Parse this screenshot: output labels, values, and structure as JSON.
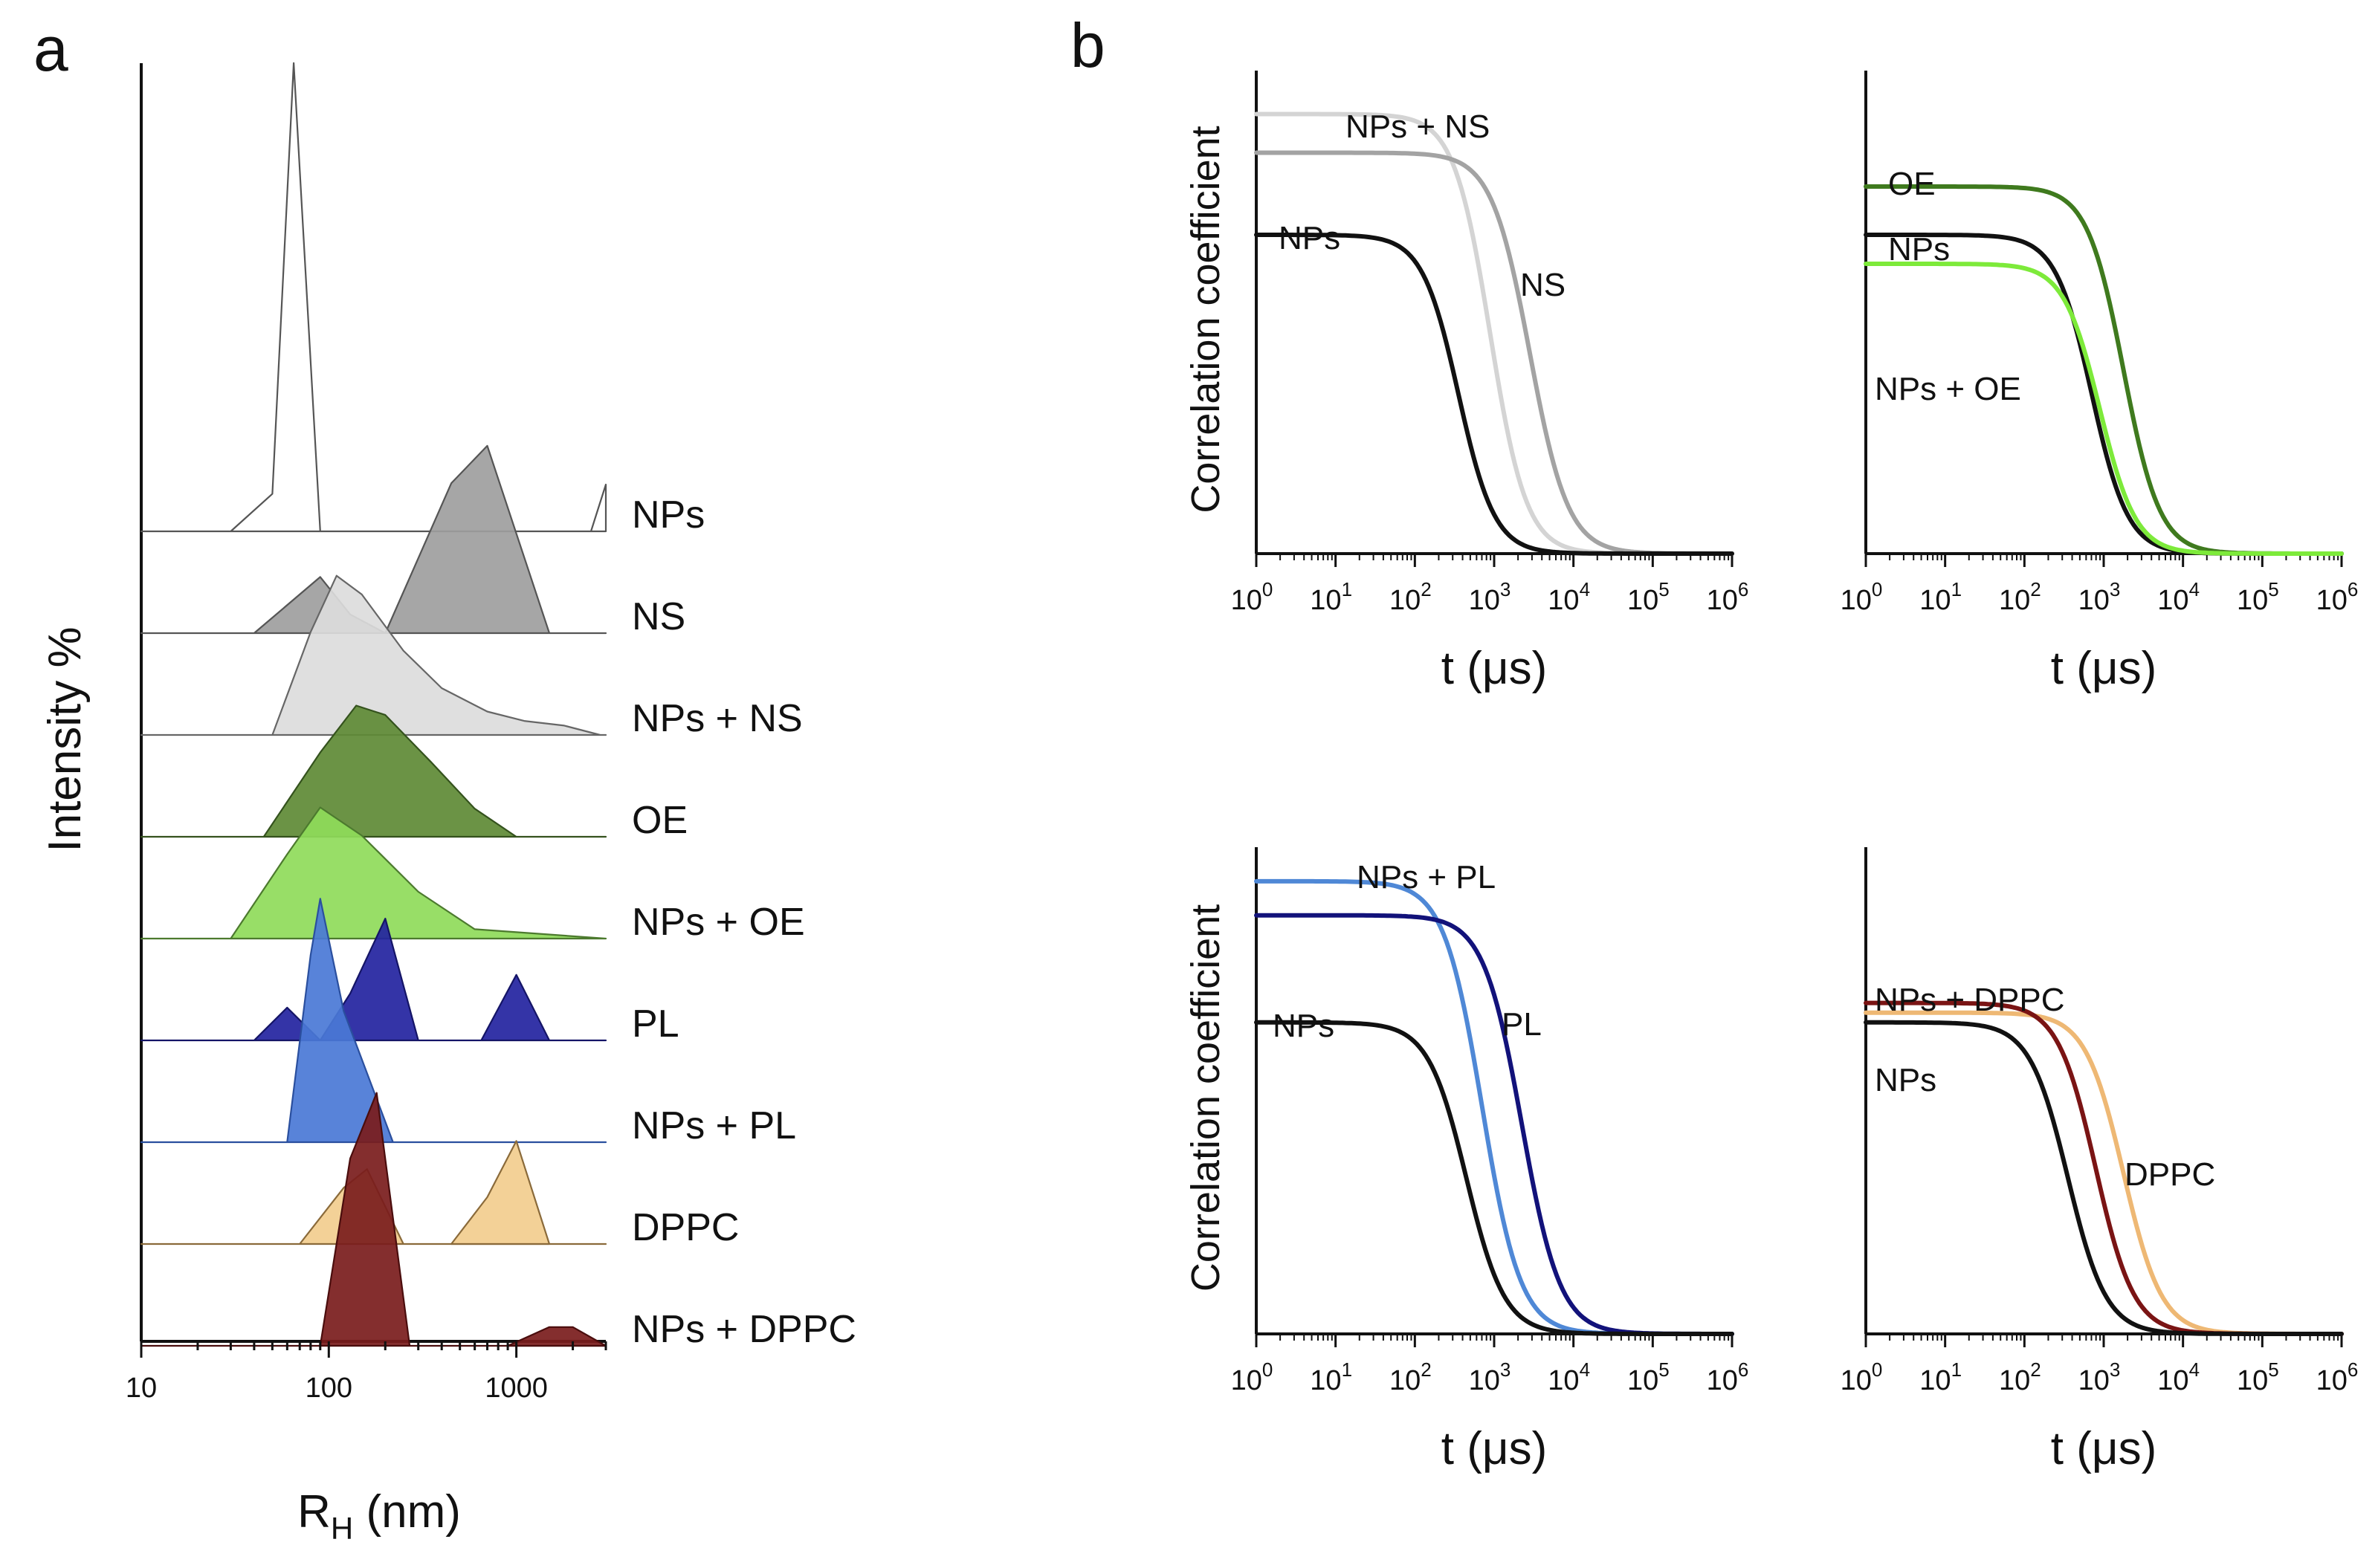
{
  "panel_a_letter": "a",
  "panel_b_letter": "b",
  "chart_data": [
    {
      "type": "area",
      "panel": "a",
      "ylabel": "Intensity %",
      "xlabel": {
        "main": "R",
        "sub": "H",
        "unit": " (nm)"
      },
      "xscale": "log",
      "xlim": [
        10,
        3000
      ],
      "x_ticks": [
        10,
        100,
        1000
      ],
      "x_tick_labels": [
        "10",
        "100",
        "1000"
      ],
      "peak_scale": 0.18,
      "legend": "row labels at right",
      "rows": [
        {
          "label": "NPs",
          "color": "#ffffff",
          "edge": "#555555",
          "traces": [
            {
              "x": [
                10,
                30,
                50,
                65,
                90,
                2500,
                3000
              ],
              "y": [
                0,
                0,
                8,
                100,
                0,
                0,
                10
              ]
            }
          ]
        },
        {
          "label": "NS",
          "color": "#9e9e9e",
          "edge": "#555555",
          "traces": [
            {
              "x": [
                10,
                40,
                90,
                130,
                200,
                450,
                700,
                1500,
                3000
              ],
              "y": [
                0,
                0,
                12,
                4,
                0,
                32,
                40,
                0,
                0
              ]
            }
          ]
        },
        {
          "label": "NPs + NS",
          "color": "#dcdcdc",
          "edge": "#666666",
          "traces": [
            {
              "x": [
                10,
                50,
                80,
                110,
                150,
                250,
                400,
                700,
                1100,
                1800,
                2800,
                3000
              ],
              "y": [
                0,
                0,
                22,
                34,
                30,
                18,
                10,
                5,
                3,
                2,
                0,
                0
              ]
            }
          ]
        },
        {
          "label": "OE",
          "color": "#5e8a35",
          "edge": "#34521d",
          "traces": [
            {
              "x": [
                10,
                45,
                90,
                140,
                200,
                350,
                600,
                1000,
                3000
              ],
              "y": [
                0,
                0,
                18,
                28,
                26,
                16,
                6,
                0,
                0
              ]
            }
          ]
        },
        {
          "label": "NPs + OE",
          "color": "#8fdb5a",
          "edge": "#4c7a2e",
          "traces": [
            {
              "x": [
                10,
                30,
                60,
                90,
                150,
                300,
                600,
                3000
              ],
              "y": [
                0,
                0,
                18,
                28,
                22,
                10,
                2,
                0
              ]
            }
          ]
        },
        {
          "label": "PL",
          "color": "#2323a0",
          "edge": "#141466",
          "traces": [
            {
              "x": [
                10,
                40,
                60,
                90,
                130,
                200,
                300,
                650,
                1000,
                1500,
                3000
              ],
              "y": [
                0,
                0,
                7,
                0,
                10,
                26,
                0,
                0,
                14,
                0,
                0
              ]
            }
          ]
        },
        {
          "label": "NPs + PL",
          "color": "#4a78d6",
          "edge": "#2a4f9e",
          "traces": [
            {
              "x": [
                10,
                60,
                80,
                90,
                120,
                220,
                3000
              ],
              "y": [
                0,
                0,
                40,
                52,
                28,
                0,
                0
              ]
            }
          ]
        },
        {
          "label": "DPPC",
          "color": "#f2cd8e",
          "edge": "#8a6a3a",
          "traces": [
            {
              "x": [
                10,
                70,
                120,
                160,
                250,
                3000
              ],
              "y": [
                0,
                0,
                12,
                16,
                0,
                0
              ]
            },
            {
              "x": [
                450,
                700,
                1000,
                1500
              ],
              "y": [
                0,
                10,
                22,
                0
              ]
            }
          ]
        },
        {
          "label": "NPs + DPPC",
          "color": "#7a1c1c",
          "edge": "#4a0d0d",
          "traces": [
            {
              "x": [
                10,
                90,
                130,
                180,
                270,
                3000
              ],
              "y": [
                0,
                0,
                40,
                54,
                0,
                0
              ]
            },
            {
              "x": [
                900,
                1500,
                2000,
                3000
              ],
              "y": [
                0,
                4,
                4,
                0
              ]
            }
          ]
        }
      ]
    },
    {
      "type": "line",
      "panel": "b-top-left",
      "ylabel": "Correlation coefficient",
      "xlabel": "t (μs)",
      "xscale": "log",
      "xlim": [
        1,
        1000000
      ],
      "ylim": [
        0,
        1
      ],
      "x_ticks_exponent": [
        0,
        1,
        2,
        3,
        4,
        5,
        6
      ],
      "x_tick_base": "10",
      "series": [
        {
          "name": "NPs + NS",
          "color": "#d4d4d4",
          "plateau": 0.91,
          "logtau": 2.95,
          "n": 1.9
        },
        {
          "name": "NS",
          "color": "#a3a3a3",
          "plateau": 0.83,
          "logtau": 3.45,
          "n": 1.8
        },
        {
          "name": "NPs",
          "color": "#111111",
          "plateau": 0.66,
          "logtau": 2.55,
          "n": 1.9
        }
      ]
    },
    {
      "type": "line",
      "panel": "b-top-right",
      "ylabel": "",
      "xlabel": "t (μs)",
      "xscale": "log",
      "xlim": [
        1,
        1000000
      ],
      "ylim": [
        0,
        1
      ],
      "x_ticks_exponent": [
        0,
        1,
        2,
        3,
        4,
        5,
        6
      ],
      "x_tick_base": "10",
      "series": [
        {
          "name": "OE",
          "color": "#3f7a1e",
          "plateau": 0.76,
          "logtau": 3.25,
          "n": 1.9
        },
        {
          "name": "NPs",
          "color": "#111111",
          "plateau": 0.66,
          "logtau": 2.85,
          "n": 1.9
        },
        {
          "name": "NPs + OE",
          "color": "#7dea3a",
          "plateau": 0.6,
          "logtau": 2.95,
          "n": 1.9
        }
      ]
    },
    {
      "type": "line",
      "panel": "b-bottom-left",
      "ylabel": "Correlation coefficient",
      "xlabel": "t (μs)",
      "xscale": "log",
      "xlim": [
        1,
        1000000
      ],
      "ylim": [
        0,
        1
      ],
      "x_ticks_exponent": [
        0,
        1,
        2,
        3,
        4,
        5,
        6
      ],
      "x_tick_base": "10",
      "series": [
        {
          "name": "NPs + PL",
          "color": "#4f88d6",
          "plateau": 0.93,
          "logtau": 2.85,
          "n": 1.8
        },
        {
          "name": "PL",
          "color": "#12127a",
          "plateau": 0.86,
          "logtau": 3.35,
          "n": 1.8
        },
        {
          "name": "NPs",
          "color": "#111111",
          "plateau": 0.64,
          "logtau": 2.65,
          "n": 1.8
        }
      ]
    },
    {
      "type": "line",
      "panel": "b-bottom-right",
      "ylabel": "",
      "xlabel": "t (μs)",
      "xscale": "log",
      "xlim": [
        1,
        1000000
      ],
      "ylim": [
        0,
        1
      ],
      "x_ticks_exponent": [
        0,
        1,
        2,
        3,
        4,
        5,
        6
      ],
      "x_tick_base": "10",
      "series": [
        {
          "name": "DPPC",
          "color": "#eeb874",
          "plateau": 0.66,
          "logtau": 3.25,
          "n": 1.8
        },
        {
          "name": "NPs + DPPC",
          "color": "#7a1414",
          "plateau": 0.68,
          "logtau": 2.9,
          "n": 1.8
        },
        {
          "name": "NPs",
          "color": "#111111",
          "plateau": 0.64,
          "logtau": 2.55,
          "n": 1.8
        }
      ]
    }
  ]
}
